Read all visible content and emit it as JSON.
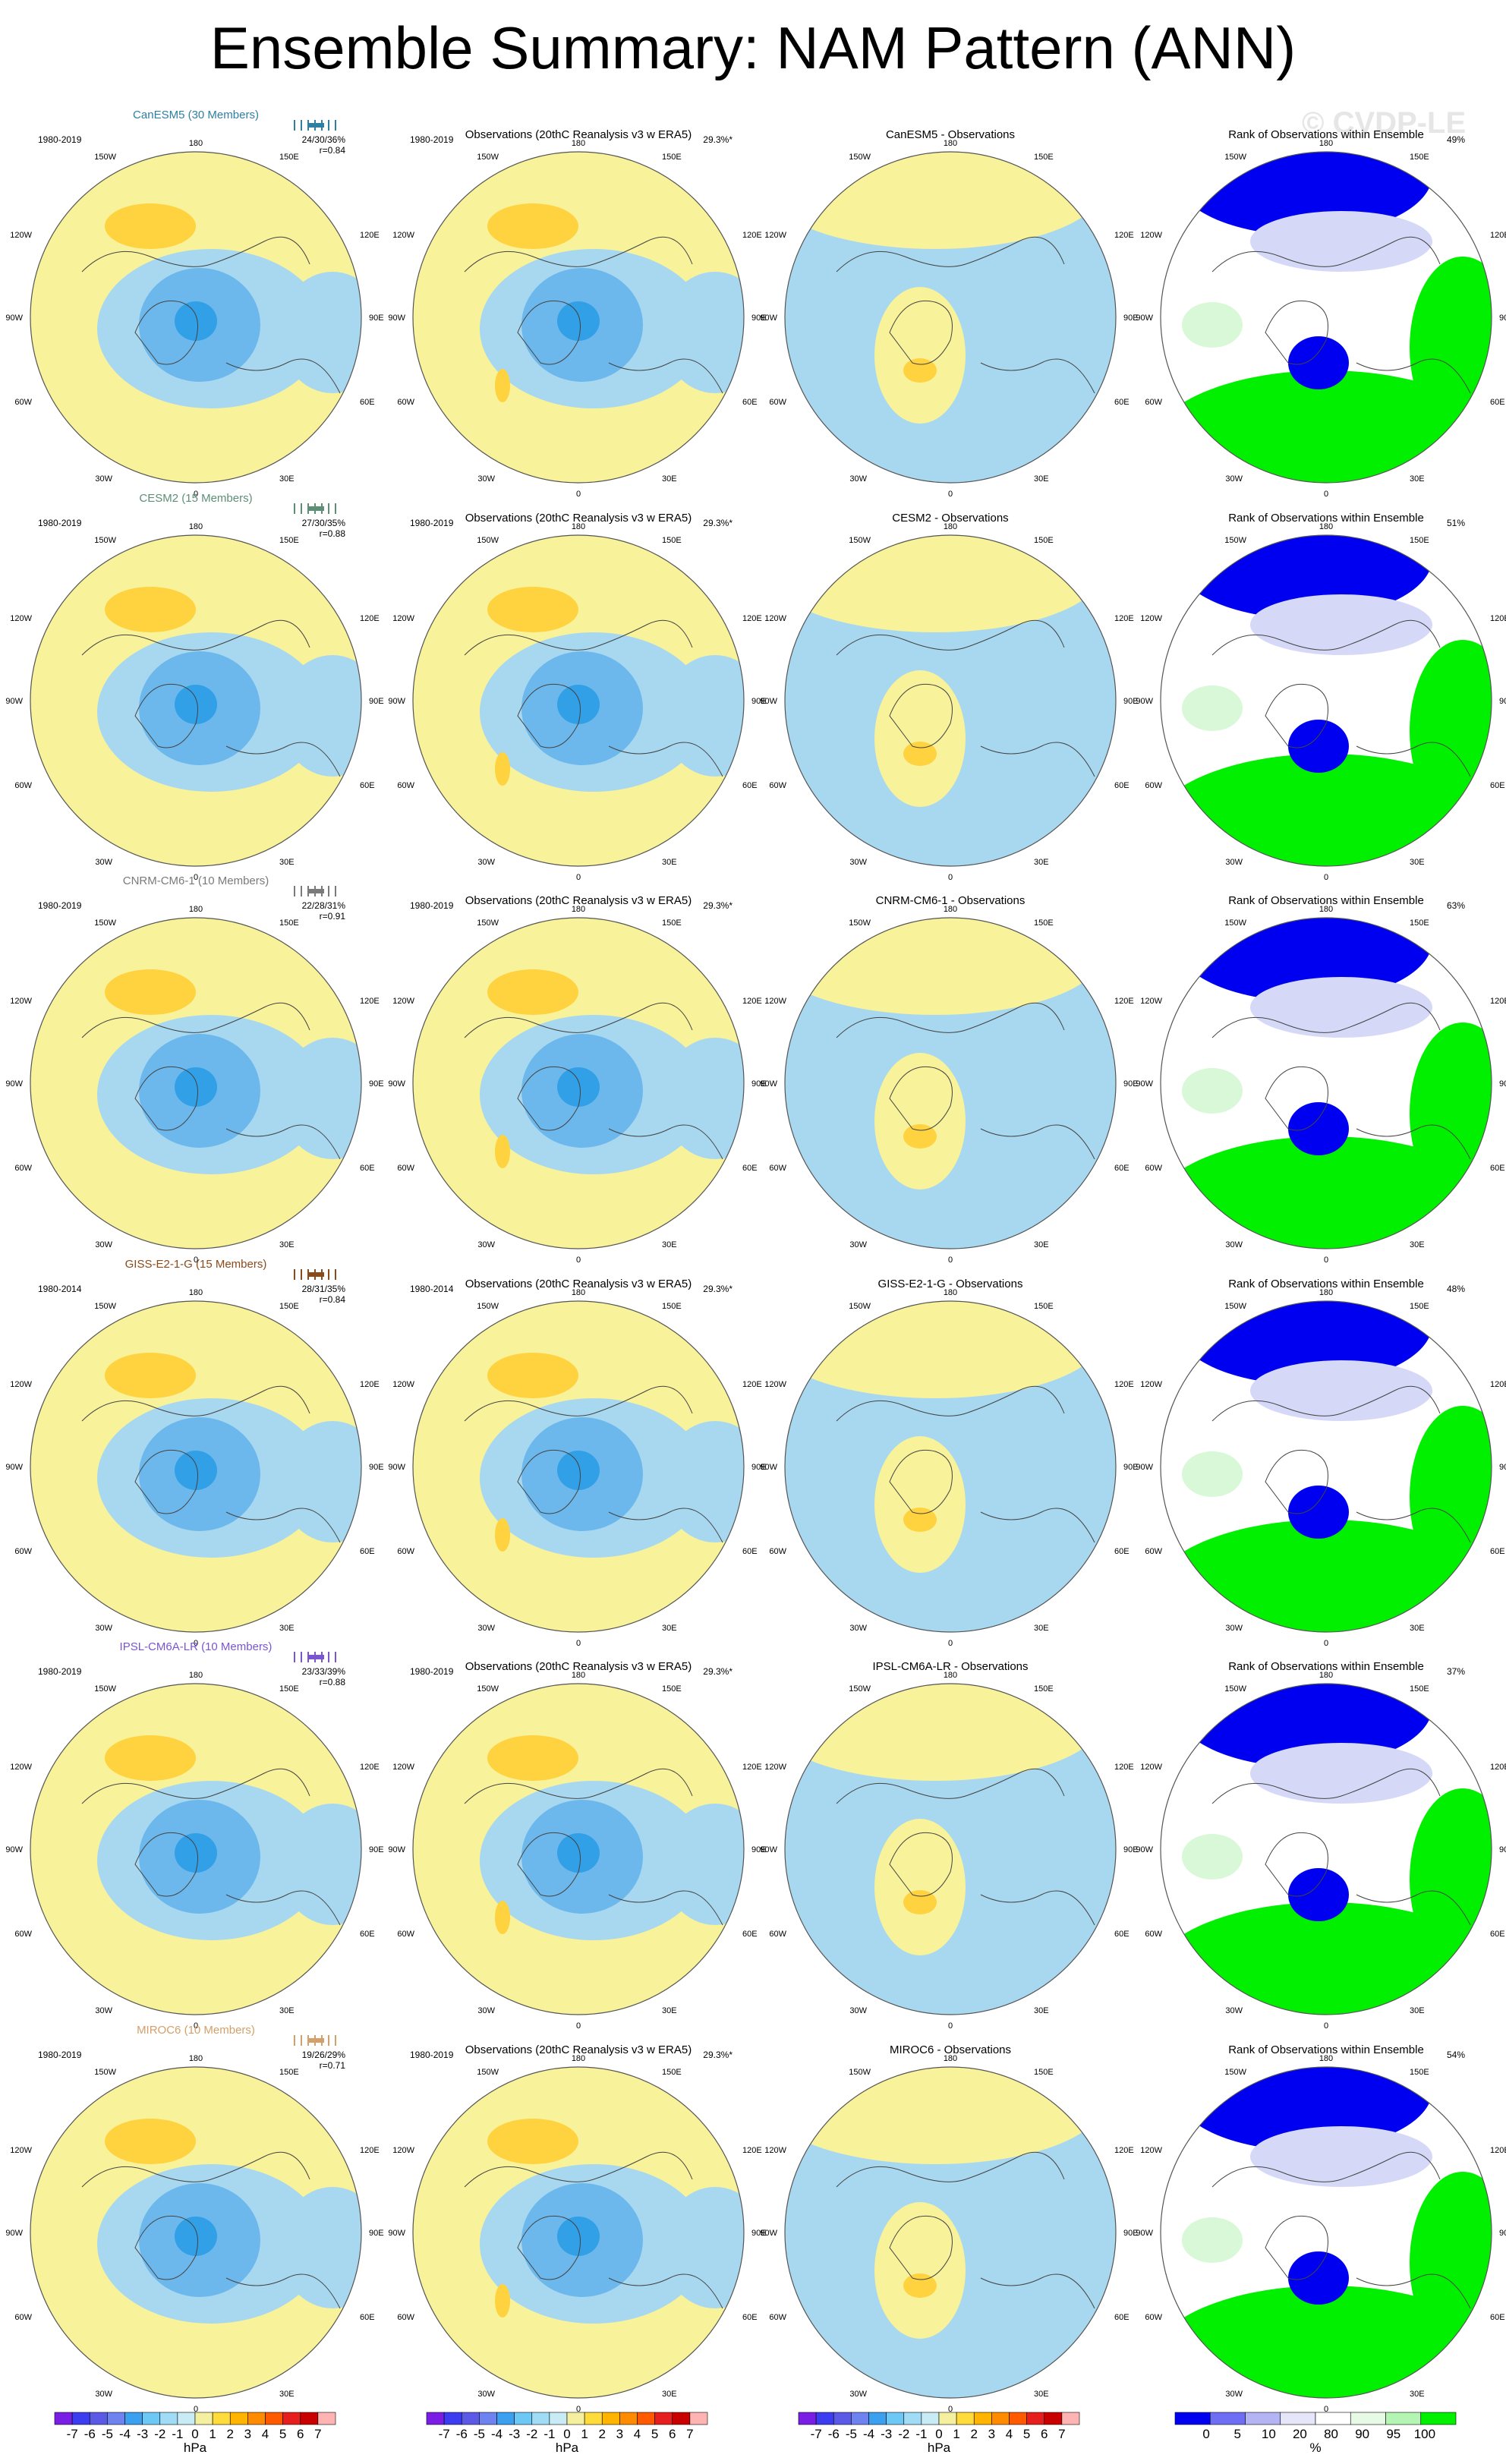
{
  "title": "Ensemble Summary: NAM Pattern (ANN)",
  "watermark": "© CVDP-LE",
  "colors": {
    "positive_light": "#f8f29a",
    "positive_mid": "#ffd23f",
    "positive_dark": "#ffb418",
    "negative_light": "#a8d8f0",
    "negative_mid": "#6cb8ec",
    "negative_dark": "#32a0e6",
    "rank_low": "#0000f0",
    "rank_lowmid": "#d6d8f8",
    "rank_high": "#00f000",
    "rank_highmid": "#d8f8d8"
  },
  "panel_titles": {
    "observations": "Observations (20thC Reanalysis v3 w ERA5)",
    "rank": "Rank of Observations within Ensemble",
    "difference_suffix": " - Observations"
  },
  "map_labels": {
    "top": "180",
    "bottom": "0",
    "left": "90W",
    "right": "90E",
    "upper_left_outer": "120W",
    "upper_left_inner": "150W",
    "upper_right_inner": "150E",
    "upper_right_outer": "120E",
    "lower_left_outer": "60W",
    "lower_left_inner": "30W",
    "lower_right_outer": "60E",
    "lower_right_inner": "30E"
  },
  "obs_pct": "29.3%*",
  "chart_data": {
    "type": "heatmap",
    "rows": [
      {
        "model": "CanESM5 (30 Members)",
        "short": "CanESM5",
        "color": "#2f7fa0",
        "period": "1980-2019",
        "obs_period": "1980-2019",
        "pct": "24/30/36%",
        "r": "r=0.84",
        "rank_pct": "49%"
      },
      {
        "model": "CESM2 (15 Members)",
        "short": "CESM2",
        "color": "#5d8f77",
        "period": "1980-2019",
        "obs_period": "1980-2019",
        "pct": "27/30/35%",
        "r": "r=0.88",
        "rank_pct": "51%"
      },
      {
        "model": "CNRM-CM6-1 (10 Members)",
        "short": "CNRM-CM6-1",
        "color": "#7a7a7a",
        "period": "1980-2019",
        "obs_period": "1980-2019",
        "pct": "22/28/31%",
        "r": "r=0.91",
        "rank_pct": "63%"
      },
      {
        "model": "GISS-E2-1-G (15 Members)",
        "short": "GISS-E2-1-G",
        "color": "#8b4a1a",
        "period": "1980-2014",
        "obs_period": "1980-2014",
        "pct": "28/31/35%",
        "r": "r=0.84",
        "rank_pct": "48%"
      },
      {
        "model": "IPSL-CM6A-LR (10 Members)",
        "short": "IPSL-CM6A-LR",
        "color": "#7a55d0",
        "period": "1980-2019",
        "obs_period": "1980-2019",
        "pct": "23/33/39%",
        "r": "r=0.88",
        "rank_pct": "37%"
      },
      {
        "model": "MIROC6 (10 Members)",
        "short": "MIROC6",
        "color": "#d3a06a",
        "period": "1980-2019",
        "obs_period": "1980-2019",
        "pct": "19/26/29%",
        "r": "r=0.71",
        "rank_pct": "54%"
      }
    ],
    "colorbar_hpa": {
      "labels": [
        "-7",
        "-6",
        "-5",
        "-4",
        "-3",
        "-2",
        "-1",
        "0",
        "1",
        "2",
        "3",
        "4",
        "5",
        "6",
        "7"
      ],
      "colors": [
        "#7a1ee6",
        "#3c3cf0",
        "#5a5ae6",
        "#6e82f0",
        "#3ca0f0",
        "#6ec8f5",
        "#a0dcf5",
        "#c8ebf5",
        "#f5f0a0",
        "#ffdc3c",
        "#ffb400",
        "#ff8c00",
        "#ff5a00",
        "#e61e1e",
        "#c80000",
        "#ffb4b4"
      ],
      "unit": "hPa"
    },
    "colorbar_rank": {
      "labels": [
        "0",
        "5",
        "10",
        "20",
        "80",
        "90",
        "95",
        "100"
      ],
      "colors": [
        "#0000f0",
        "#6e6ef5",
        "#b4b4f5",
        "#e6e6fa",
        "#ffffff",
        "#e6fae6",
        "#b4f5b4",
        "#00f000"
      ],
      "unit": "%"
    }
  }
}
